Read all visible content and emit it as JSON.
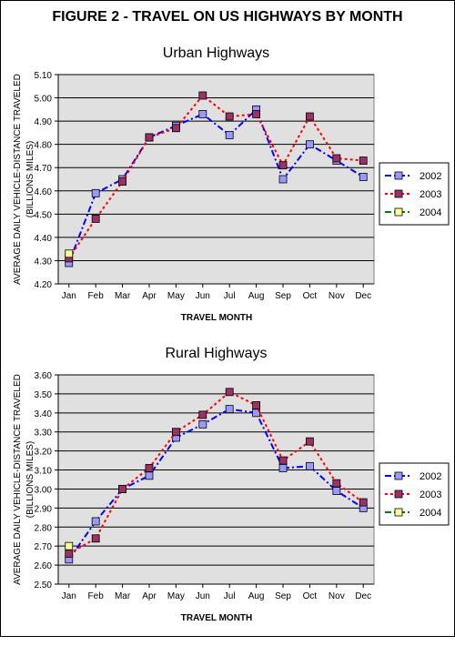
{
  "figure_title": "FIGURE 2 - TRAVEL ON US HIGHWAYS BY MONTH",
  "colors": {
    "plot_bg": "#e0e0e0",
    "grid": "#000000",
    "series_2002": "#0000ff",
    "series_2003": "#ff0000",
    "series_2004": "#008000",
    "marker_2002": "#9999ff",
    "marker_2003": "#993366",
    "marker_2004": "#ffff99"
  },
  "chart_data": [
    {
      "type": "line",
      "title": "Urban Highways",
      "xlabel": "TRAVEL MONTH",
      "ylabel": "AVERAGE DAILY VEHICLE-DISTANCE TRAVELED",
      "ylabel2": "(BILLIONS MILES)",
      "categories": [
        "Jan",
        "Feb",
        "Mar",
        "Apr",
        "May",
        "Jun",
        "Jul",
        "Aug",
        "Sep",
        "Oct",
        "Nov",
        "Dec"
      ],
      "ylim": [
        4.2,
        5.1
      ],
      "ystep": 0.1,
      "ytick_labels": [
        "4.20",
        "4.30",
        "4.40",
        "4.50",
        "4.60",
        "4.70",
        "4.80",
        "4.90",
        "5.00",
        "5.10"
      ],
      "grid": true,
      "legend_position": "right",
      "series": [
        {
          "name": "2002",
          "values": [
            4.29,
            4.59,
            4.65,
            4.83,
            4.88,
            4.93,
            4.84,
            4.95,
            4.65,
            4.8,
            4.73,
            4.66
          ]
        },
        {
          "name": "2003",
          "values": [
            4.31,
            4.48,
            4.64,
            4.83,
            4.87,
            5.01,
            4.92,
            4.93,
            4.71,
            4.92,
            4.74,
            4.73
          ]
        },
        {
          "name": "2004",
          "values": [
            4.33,
            null,
            null,
            null,
            null,
            null,
            null,
            null,
            null,
            null,
            null,
            null
          ]
        }
      ]
    },
    {
      "type": "line",
      "title": "Rural Highways",
      "xlabel": "TRAVEL MONTH",
      "ylabel": "AVERAGE DAILY VEHICLE-DISTANCE TRAVELED",
      "ylabel2": "(BILLIONS MILES)",
      "categories": [
        "Jan",
        "Feb",
        "Mar",
        "Apr",
        "May",
        "Jun",
        "Jul",
        "Aug",
        "Sep",
        "Oct",
        "Nov",
        "Dec"
      ],
      "ylim": [
        2.5,
        3.6
      ],
      "ystep": 0.1,
      "ytick_labels": [
        "2.50",
        "2.60",
        "2.70",
        "2.80",
        "2.90",
        "3.00",
        "3.10",
        "3.20",
        "3.30",
        "3.40",
        "3.50",
        "3.60"
      ],
      "grid": true,
      "legend_position": "right",
      "series": [
        {
          "name": "2002",
          "values": [
            2.63,
            2.83,
            3.0,
            3.07,
            3.27,
            3.34,
            3.42,
            3.4,
            3.11,
            3.12,
            2.99,
            2.9
          ]
        },
        {
          "name": "2003",
          "values": [
            2.66,
            2.74,
            3.0,
            3.11,
            3.3,
            3.39,
            3.51,
            3.44,
            3.15,
            3.25,
            3.03,
            2.93
          ]
        },
        {
          "name": "2004",
          "values": [
            2.7,
            null,
            null,
            null,
            null,
            null,
            null,
            null,
            null,
            null,
            null,
            null
          ]
        }
      ]
    }
  ]
}
